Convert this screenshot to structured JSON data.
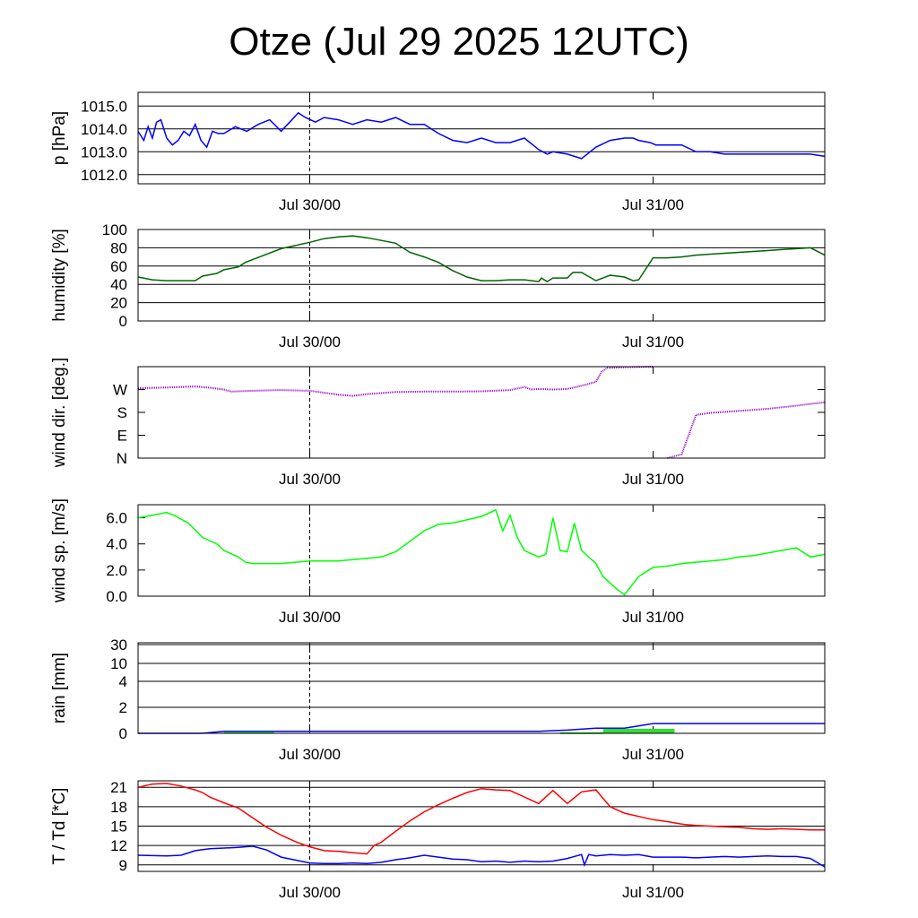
{
  "title": "Otze (Jul 29 2025 12UTC)",
  "colors": {
    "pressure": "#0000ff",
    "humidity": "#006400",
    "wind_dir": "#9900cc",
    "wind_speed": "#00ff00",
    "rain_total": "#0000ff",
    "rain_rate": "#33dd33",
    "temperature": "#ff0000",
    "dewpoint": "#0000ff",
    "grid": "#000000"
  },
  "chart_data": [
    {
      "type": "line",
      "ylabel": "p [hPa]",
      "yticks": [
        "1012.0",
        "1013.0",
        "1014.0",
        "1015.0"
      ],
      "ytick_values": [
        1012,
        1013,
        1014,
        1015
      ],
      "ylim": [
        1011.6,
        1015.6
      ],
      "xlim_hours": [
        -12,
        36
      ],
      "xtick_labels": [
        "Jul 30/00",
        "Jul 31/00"
      ],
      "grid": "horizontal",
      "series": [
        {
          "color_key": "pressure",
          "x": [
            -12,
            -11.6,
            -11.3,
            -11,
            -10.7,
            -10.4,
            -10,
            -9.6,
            -9.2,
            -8.8,
            -8.4,
            -8,
            -7.6,
            -7.2,
            -6.8,
            -6.4,
            -6,
            -5.2,
            -4.4,
            -3.6,
            -2.8,
            -2,
            -1.4,
            -0.8,
            -0.3,
            0.4,
            1,
            2,
            3,
            4,
            5,
            6,
            7,
            8,
            9,
            10,
            11,
            12,
            13,
            14,
            15,
            16,
            16.6,
            17,
            18,
            19,
            20,
            21,
            22,
            22.6,
            23,
            23.8,
            24.2,
            25,
            26,
            27,
            28,
            29,
            30,
            31,
            32,
            33,
            34,
            35,
            36
          ],
          "values": [
            1013.9,
            1013.5,
            1014.1,
            1013.6,
            1014.3,
            1014.4,
            1013.6,
            1013.3,
            1013.5,
            1013.9,
            1013.7,
            1014.2,
            1013.5,
            1013.2,
            1013.9,
            1013.8,
            1013.8,
            1014.1,
            1013.9,
            1014.2,
            1014.4,
            1013.9,
            1014.3,
            1014.7,
            1014.5,
            1014.3,
            1014.5,
            1014.4,
            1014.2,
            1014.4,
            1014.3,
            1014.5,
            1014.2,
            1014.2,
            1013.8,
            1013.5,
            1013.4,
            1013.6,
            1013.4,
            1013.4,
            1013.6,
            1013.1,
            1012.9,
            1013.0,
            1012.9,
            1012.7,
            1013.2,
            1013.5,
            1013.6,
            1013.6,
            1013.5,
            1013.4,
            1013.3,
            1013.3,
            1013.3,
            1013.0,
            1013.0,
            1012.9,
            1012.9,
            1012.9,
            1012.9,
            1012.9,
            1012.9,
            1012.9,
            1012.8
          ]
        }
      ]
    },
    {
      "type": "line",
      "ylabel": "humidity [%]",
      "yticks": [
        "0",
        "20",
        "40",
        "60",
        "80",
        "100"
      ],
      "ytick_values": [
        0,
        20,
        40,
        60,
        80,
        100
      ],
      "ylim": [
        0,
        100
      ],
      "xlim_hours": [
        -12,
        36
      ],
      "xtick_labels": [
        "Jul 30/00",
        "Jul 31/00"
      ],
      "grid": "horizontal",
      "series": [
        {
          "color_key": "humidity",
          "x": [
            -12,
            -11,
            -10,
            -9,
            -8,
            -7.5,
            -6.5,
            -6,
            -5,
            -4.5,
            -3.5,
            -2,
            0,
            1,
            2,
            3,
            4,
            5,
            6,
            7,
            8,
            9,
            10,
            11,
            12,
            13,
            14,
            15,
            16,
            16.2,
            16.6,
            17,
            18,
            18.4,
            19,
            20,
            20.5,
            21,
            22,
            22.6,
            23,
            24,
            25,
            26,
            27,
            28,
            29,
            30,
            31,
            32,
            33,
            34,
            35,
            36
          ],
          "values": [
            48,
            45,
            44,
            44,
            44,
            49,
            52,
            56,
            59,
            64,
            70,
            79,
            86,
            90,
            92,
            93,
            91,
            88,
            85,
            75,
            70,
            64,
            55,
            48,
            44,
            44,
            45,
            45,
            43,
            47,
            43,
            47,
            47,
            53,
            53,
            44,
            47,
            50,
            48,
            44,
            45,
            69,
            69,
            70,
            72,
            73,
            74,
            75,
            76,
            77,
            78,
            79,
            80,
            72
          ]
        }
      ]
    },
    {
      "type": "scatter",
      "ylabel": "wind dir. [deg.]",
      "yticks": [
        "N",
        "E",
        "S",
        "W"
      ],
      "ytick_values": [
        0,
        90,
        180,
        270
      ],
      "ylim": [
        0,
        360
      ],
      "xlim_hours": [
        -12,
        36
      ],
      "xtick_labels": [
        "Jul 30/00",
        "Jul 31/00"
      ],
      "grid": "none",
      "series": [
        {
          "color_key": "wind_dir",
          "x": [
            -12,
            -10,
            -8,
            -7,
            -6,
            -5.5,
            -4,
            -2,
            0,
            2,
            3,
            4,
            6,
            8,
            10,
            12,
            14,
            15,
            15.5,
            16,
            17,
            18,
            19,
            20,
            20.4,
            20.8,
            22,
            24,
            25,
            26,
            27,
            28,
            29,
            30,
            31,
            32,
            33,
            34,
            35,
            36
          ],
          "values": [
            275,
            278,
            282,
            277,
            270,
            262,
            265,
            268,
            265,
            250,
            245,
            252,
            260,
            262,
            262,
            263,
            268,
            280,
            270,
            272,
            270,
            272,
            285,
            300,
            340,
            355,
            358,
            360,
            0,
            15,
            170,
            178,
            182,
            186,
            190,
            194,
            200,
            206,
            213,
            220
          ]
        }
      ]
    },
    {
      "type": "line",
      "ylabel": "wind sp. [m/s]",
      "yticks": [
        "0.0",
        "2.0",
        "4.0",
        "6.0"
      ],
      "ytick_values": [
        0,
        2,
        4,
        6
      ],
      "ylim": [
        0,
        7
      ],
      "xlim_hours": [
        -12,
        36
      ],
      "xtick_labels": [
        "Jul 30/00",
        "Jul 31/00"
      ],
      "grid": "none",
      "series": [
        {
          "color_key": "wind_speed",
          "x": [
            -12,
            -11,
            -10,
            -9.5,
            -8.5,
            -7.5,
            -6.5,
            -6,
            -5,
            -4.5,
            -4,
            -2,
            0,
            2,
            4,
            5,
            6,
            8,
            9,
            10,
            12,
            13,
            13.5,
            14,
            14.5,
            15,
            16,
            16.5,
            17,
            17.5,
            18,
            18.5,
            19,
            20,
            20.5,
            21,
            21.5,
            22,
            23,
            24,
            25,
            26,
            27,
            28,
            29,
            30,
            31,
            32,
            33,
            34,
            35,
            36
          ],
          "values": [
            6.0,
            6.2,
            6.4,
            6.2,
            5.6,
            4.5,
            4.0,
            3.5,
            3.0,
            2.6,
            2.5,
            2.5,
            2.7,
            2.7,
            2.9,
            3.0,
            3.4,
            5.0,
            5.5,
            5.6,
            6.1,
            6.6,
            5.0,
            6.2,
            4.5,
            3.5,
            3.0,
            3.2,
            6.0,
            3.5,
            3.4,
            5.6,
            3.5,
            2.5,
            1.5,
            1.0,
            0.5,
            0.1,
            1.5,
            2.2,
            2.3,
            2.5,
            2.6,
            2.7,
            2.8,
            3.0,
            3.1,
            3.3,
            3.5,
            3.7,
            3.0,
            3.2
          ]
        }
      ]
    },
    {
      "type": "area",
      "ylabel": "rain [mm]",
      "yticks": [
        "0",
        "2",
        "4",
        "10",
        "30"
      ],
      "ytick_values": [
        0,
        2,
        4,
        10,
        30
      ],
      "ylim": [
        0,
        30
      ],
      "xlim_hours": [
        -12,
        36
      ],
      "xtick_labels": [
        "Jul 30/00",
        "Jul 31/00"
      ],
      "grid": "horizontal",
      "series": [
        {
          "color_key": "rain_total",
          "x": [
            -12,
            -7.5,
            -6,
            -4,
            0,
            10,
            16,
            18,
            20,
            22,
            24,
            26,
            28,
            30,
            32,
            34,
            36
          ],
          "values": [
            0,
            0,
            0.15,
            0.15,
            0.15,
            0.15,
            0.15,
            0.25,
            0.4,
            0.4,
            0.75,
            0.75,
            0.75,
            0.75,
            0.75,
            0.75,
            0.75
          ]
        },
        {
          "color_key": "rain_rate",
          "bars": [
            [
              -6,
              -2.5,
              0.12
            ],
            [
              17.5,
              20.5,
              0.08
            ],
            [
              20.5,
              25.5,
              0.35
            ]
          ]
        }
      ]
    },
    {
      "type": "line",
      "ylabel": "T / Td [*C]",
      "yticks": [
        "9",
        "12",
        "15",
        "18",
        "21"
      ],
      "ytick_values": [
        9,
        12,
        15,
        18,
        21
      ],
      "ylim": [
        8,
        22
      ],
      "xlim_hours": [
        -12,
        36
      ],
      "xtick_labels": [
        "Jul 30/00",
        "Jul 31/00"
      ],
      "grid": "horizontal",
      "series": [
        {
          "color_key": "temperature",
          "x": [
            -12,
            -11,
            -10,
            -9,
            -8,
            -7.5,
            -7,
            -6,
            -5,
            -4,
            -3,
            -2,
            -1,
            0,
            1,
            2,
            3,
            4,
            4.5,
            5,
            6,
            7,
            8,
            9,
            10,
            11,
            12,
            13,
            14,
            15,
            16,
            17,
            18,
            19,
            20,
            21,
            22,
            23,
            24,
            25,
            26,
            27,
            28,
            29,
            30,
            31,
            32,
            33,
            34,
            35,
            36
          ],
          "values": [
            21.0,
            21.5,
            21.6,
            21.2,
            20.6,
            20.2,
            19.5,
            18.6,
            17.8,
            16.3,
            14.8,
            13.6,
            12.6,
            11.8,
            11.2,
            11.1,
            10.9,
            10.7,
            12.0,
            12.5,
            14.2,
            15.8,
            17.2,
            18.3,
            19.3,
            20.2,
            20.8,
            20.6,
            20.5,
            19.5,
            18.5,
            20.5,
            18.5,
            20.3,
            20.6,
            18.0,
            17.0,
            16.5,
            16.0,
            15.7,
            15.3,
            15.1,
            15.0,
            14.9,
            14.8,
            14.6,
            14.5,
            14.6,
            14.5,
            14.4,
            14.4
          ]
        },
        {
          "color_key": "dewpoint",
          "x": [
            -12,
            -10,
            -9,
            -8,
            -7,
            -6,
            -5,
            -4,
            -3,
            -2,
            0,
            1,
            2,
            3,
            4,
            5,
            6,
            7,
            8,
            9,
            10,
            11,
            12,
            13,
            14,
            15,
            16,
            17,
            18,
            19,
            19.2,
            19.5,
            20,
            21,
            22,
            23,
            24,
            25,
            26,
            27,
            28,
            29,
            30,
            31,
            32,
            33,
            34,
            35,
            36
          ],
          "values": [
            10.5,
            10.4,
            10.5,
            11.2,
            11.5,
            11.6,
            11.7,
            11.9,
            11.3,
            10.2,
            9.3,
            9.2,
            9.2,
            9.3,
            9.2,
            9.4,
            9.8,
            10.1,
            10.5,
            10.2,
            9.9,
            9.8,
            9.5,
            9.6,
            9.4,
            9.6,
            9.5,
            9.6,
            10.0,
            10.6,
            9.0,
            10.6,
            10.4,
            10.6,
            10.5,
            10.6,
            10.2,
            10.2,
            10.2,
            10.1,
            10.2,
            10.3,
            10.2,
            10.3,
            10.4,
            10.3,
            10.3,
            10.0,
            8.7
          ]
        }
      ]
    }
  ]
}
